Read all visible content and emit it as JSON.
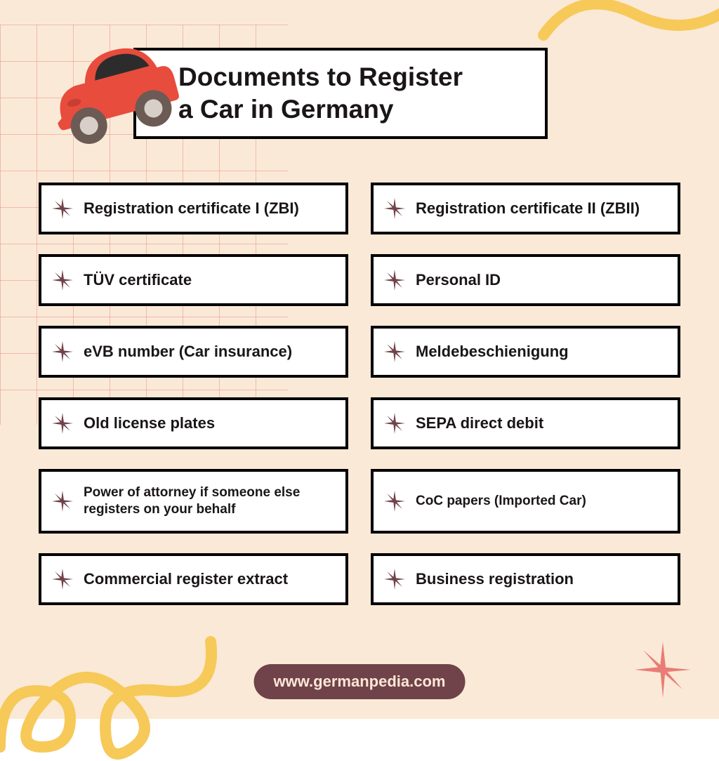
{
  "colors": {
    "background": "#fbe9d7",
    "box_bg": "#ffffff",
    "border": "#000000",
    "text": "#1a1617",
    "asterisk": "#704249",
    "footer_bg": "#704249",
    "footer_text": "#fbe7d6",
    "grid_line": "#e88c82",
    "squiggle": "#f6c959",
    "star": "#e97c76",
    "car_body": "#e84c3d",
    "car_window": "#2c2c2c",
    "car_wheel": "#6b5b54",
    "car_hub": "#d8d0c8"
  },
  "title": "Documents to Register\na Car in Germany",
  "left_items": [
    {
      "text": "Registration certificate I (ZBI)",
      "tall": false
    },
    {
      "text": "TÜV certificate",
      "tall": false
    },
    {
      "text": "eVB number (Car insurance)",
      "tall": false
    },
    {
      "text": "Old license plates",
      "tall": false
    },
    {
      "text": "Power of attorney if someone else registers on your behalf",
      "tall": true
    },
    {
      "text": "Commercial register extract",
      "tall": false
    }
  ],
  "right_items": [
    {
      "text": "Registration certificate II (ZBII)",
      "tall": false
    },
    {
      "text": "Personal ID",
      "tall": false
    },
    {
      "text": "Meldebeschienigung",
      "tall": false
    },
    {
      "text": "SEPA direct debit",
      "tall": false
    },
    {
      "text": "CoC papers (Imported Car)",
      "tall": true
    },
    {
      "text": "Business registration",
      "tall": false
    }
  ],
  "footer": "www.germanpedia.com"
}
